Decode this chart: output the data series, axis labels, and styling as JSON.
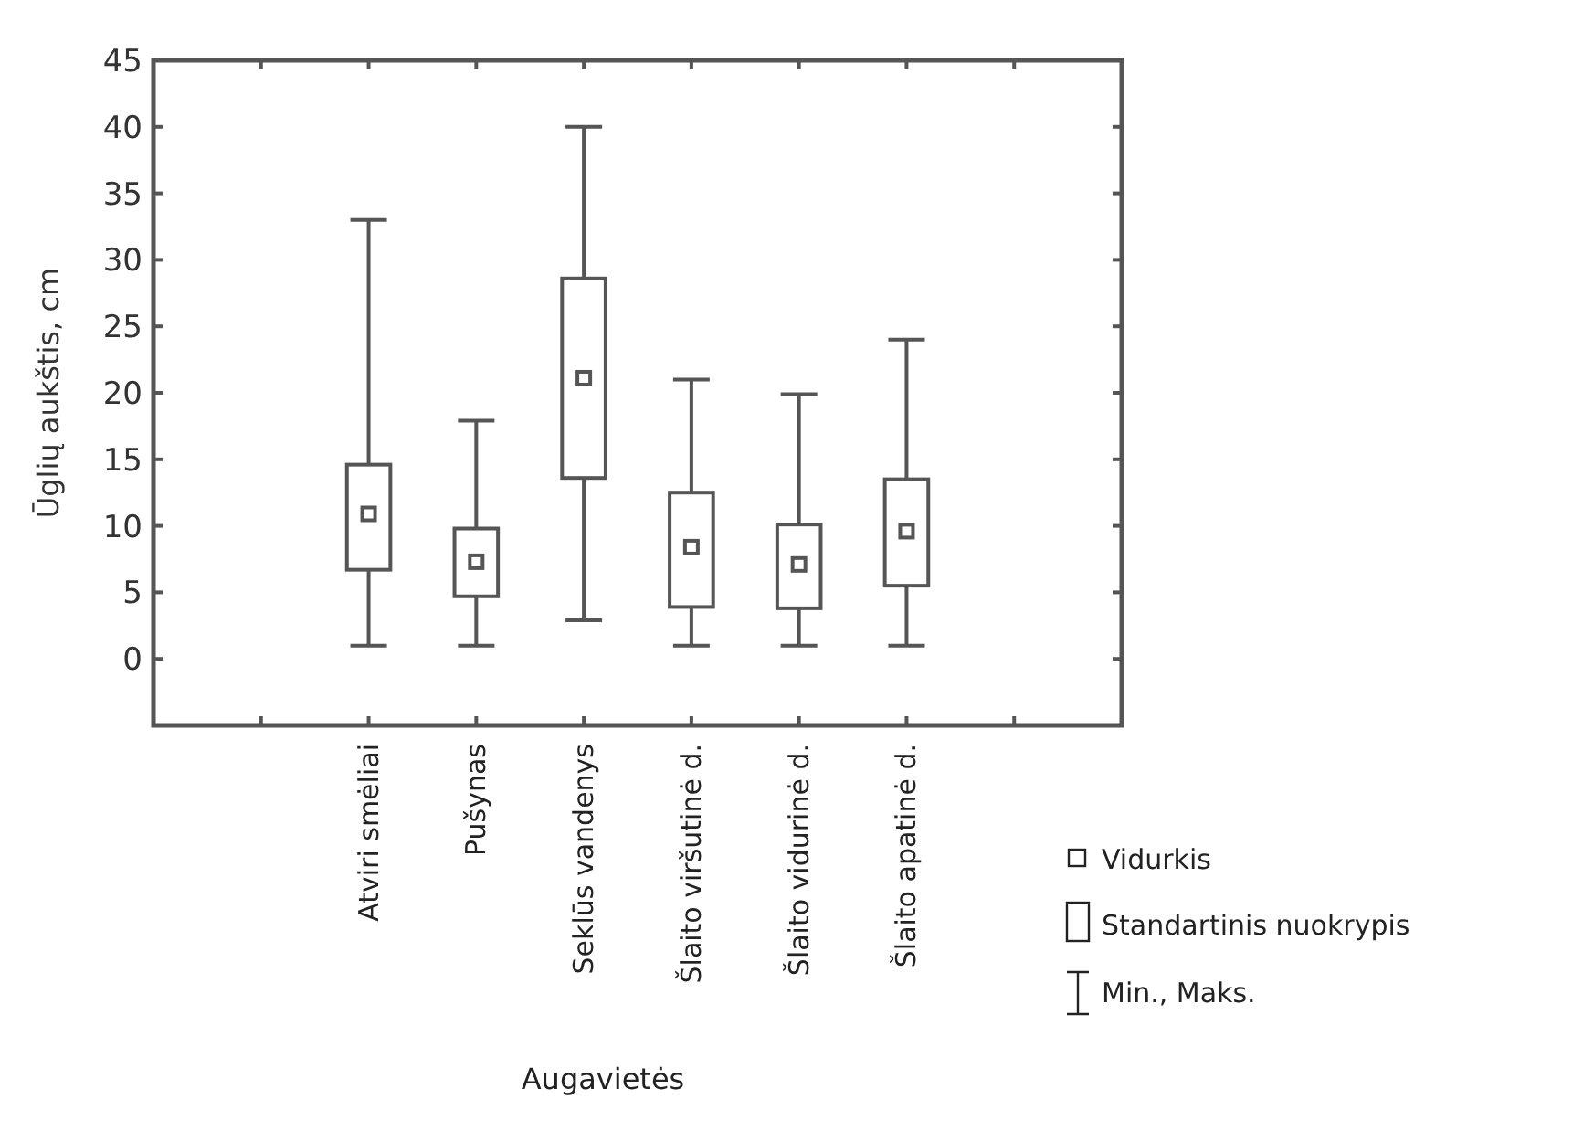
{
  "chart_data": {
    "type": "box",
    "ylabel": "Ūglių aukštis, cm",
    "xlabel": "Augavietės",
    "categories": [
      null,
      "Atviri smėliai",
      "Pušynas",
      "Seklūs vandenys",
      "Šlaito viršutinė d.",
      "Šlaito vidurinė d.",
      "Šlaito apatinė d.",
      null
    ],
    "boxes": [
      null,
      {
        "low": 1,
        "q1": 6.7,
        "median": null,
        "q3": 14.6,
        "high": 33,
        "mean": 10.9
      },
      {
        "low": 1,
        "q1": 4.7,
        "median": null,
        "q3": 9.8,
        "high": 17.9,
        "mean": 7.3
      },
      {
        "low": 2.9,
        "q1": 13.6,
        "median": null,
        "q3": 28.6,
        "high": 40,
        "mean": 21.1
      },
      {
        "low": 1,
        "q1": 3.9,
        "median": null,
        "q3": 12.5,
        "high": 21,
        "mean": 8.4
      },
      {
        "low": 1,
        "q1": 3.8,
        "median": null,
        "q3": 10.1,
        "high": 19.9,
        "mean": 7.1
      },
      {
        "low": 1,
        "q1": 5.5,
        "median": null,
        "q3": 13.5,
        "high": 24,
        "mean": 9.6
      },
      null
    ],
    "color": "#555555",
    "ylim": [
      -5,
      45
    ],
    "yticks": [
      0,
      5,
      10,
      15,
      20,
      25,
      30,
      35,
      40,
      45
    ],
    "grid": false,
    "annotations": [
      "Vidurkis",
      "Standartinis nuokrypis",
      "Min., Maks."
    ]
  }
}
